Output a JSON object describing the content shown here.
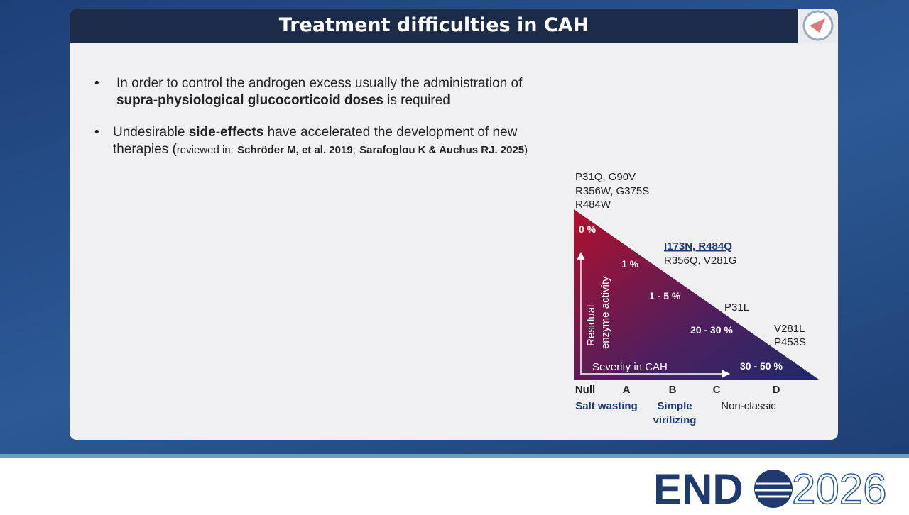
{
  "header": {
    "title": "Treatment difficulties in CAH"
  },
  "bullets": [
    {
      "parts": [
        "In order to control the androgen excess usually the administration of",
        "supra-physiological glucocorticoid doses",
        "is required"
      ]
    },
    {
      "parts": [
        "Undesirable",
        "side-effects",
        "have accelerated the development of new therapies (",
        "reviewed in:",
        "Schröder M, et al. 2019",
        ";",
        "Sarafoglou K & Auchus RJ. 2025",
        ")"
      ]
    }
  ],
  "figure": {
    "mutations": [
      [
        "P31Q, G90V",
        "R356W, G375S",
        "R484W"
      ],
      [
        "I173N, R484Q",
        "R356Q, V281G"
      ],
      [
        "P31L"
      ],
      [
        "V281L",
        "P453S"
      ]
    ],
    "activity": [
      "0 %",
      "1 %",
      "1 - 5 %",
      "20 - 30 %",
      "30 - 50 %"
    ],
    "y_axis": [
      "Residual",
      "enzyme activity"
    ],
    "x_axis": "Severity in CAH",
    "groups": [
      "Null",
      "A",
      "B",
      "C",
      "D"
    ],
    "phenotypes": [
      "Salt wasting",
      "Simple virilizing",
      "Non-classic"
    ]
  },
  "logo": {
    "left": "END",
    "right": "2026"
  }
}
